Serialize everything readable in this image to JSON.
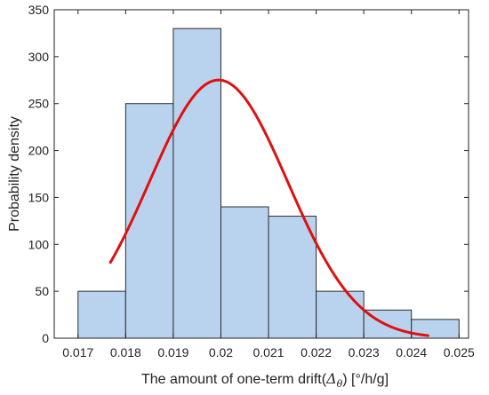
{
  "chart_data": {
    "type": "bar",
    "bin_edges": [
      0.017,
      0.018,
      0.019,
      0.02,
      0.021,
      0.022,
      0.023,
      0.024,
      0.025
    ],
    "values": [
      50,
      250,
      330,
      140,
      130,
      50,
      30,
      20
    ],
    "xlim": [
      0.0165,
      0.0252
    ],
    "ylim": [
      0,
      350
    ],
    "x_ticks": [
      0.017,
      0.018,
      0.019,
      0.02,
      0.021,
      0.022,
      0.023,
      0.024,
      0.025
    ],
    "x_tick_labels": [
      "0.017",
      "0.018",
      "0.019",
      "0.02",
      "0.021",
      "0.022",
      "0.023",
      "0.024",
      "0.025"
    ],
    "y_ticks": [
      0,
      50,
      100,
      150,
      200,
      250,
      300,
      350
    ],
    "y_tick_labels": [
      "0",
      "50",
      "100",
      "150",
      "200",
      "250",
      "300",
      "350"
    ],
    "xlabel_prefix": "The amount of one-term drift(",
    "xlabel_symbol": "Δ",
    "xlabel_subscript": "θ",
    "xlabel_suffix": ") [°/h/g]",
    "ylabel": "Probability density",
    "bar_fill": "#b9d3ef",
    "bar_stroke": "#2b2b2b",
    "curve": {
      "type": "normal-fit",
      "color": "#e01010",
      "mean": 0.01995,
      "sd": 0.00145,
      "x_range": [
        0.01768,
        0.02435
      ]
    },
    "grid": false,
    "legend": "none"
  }
}
